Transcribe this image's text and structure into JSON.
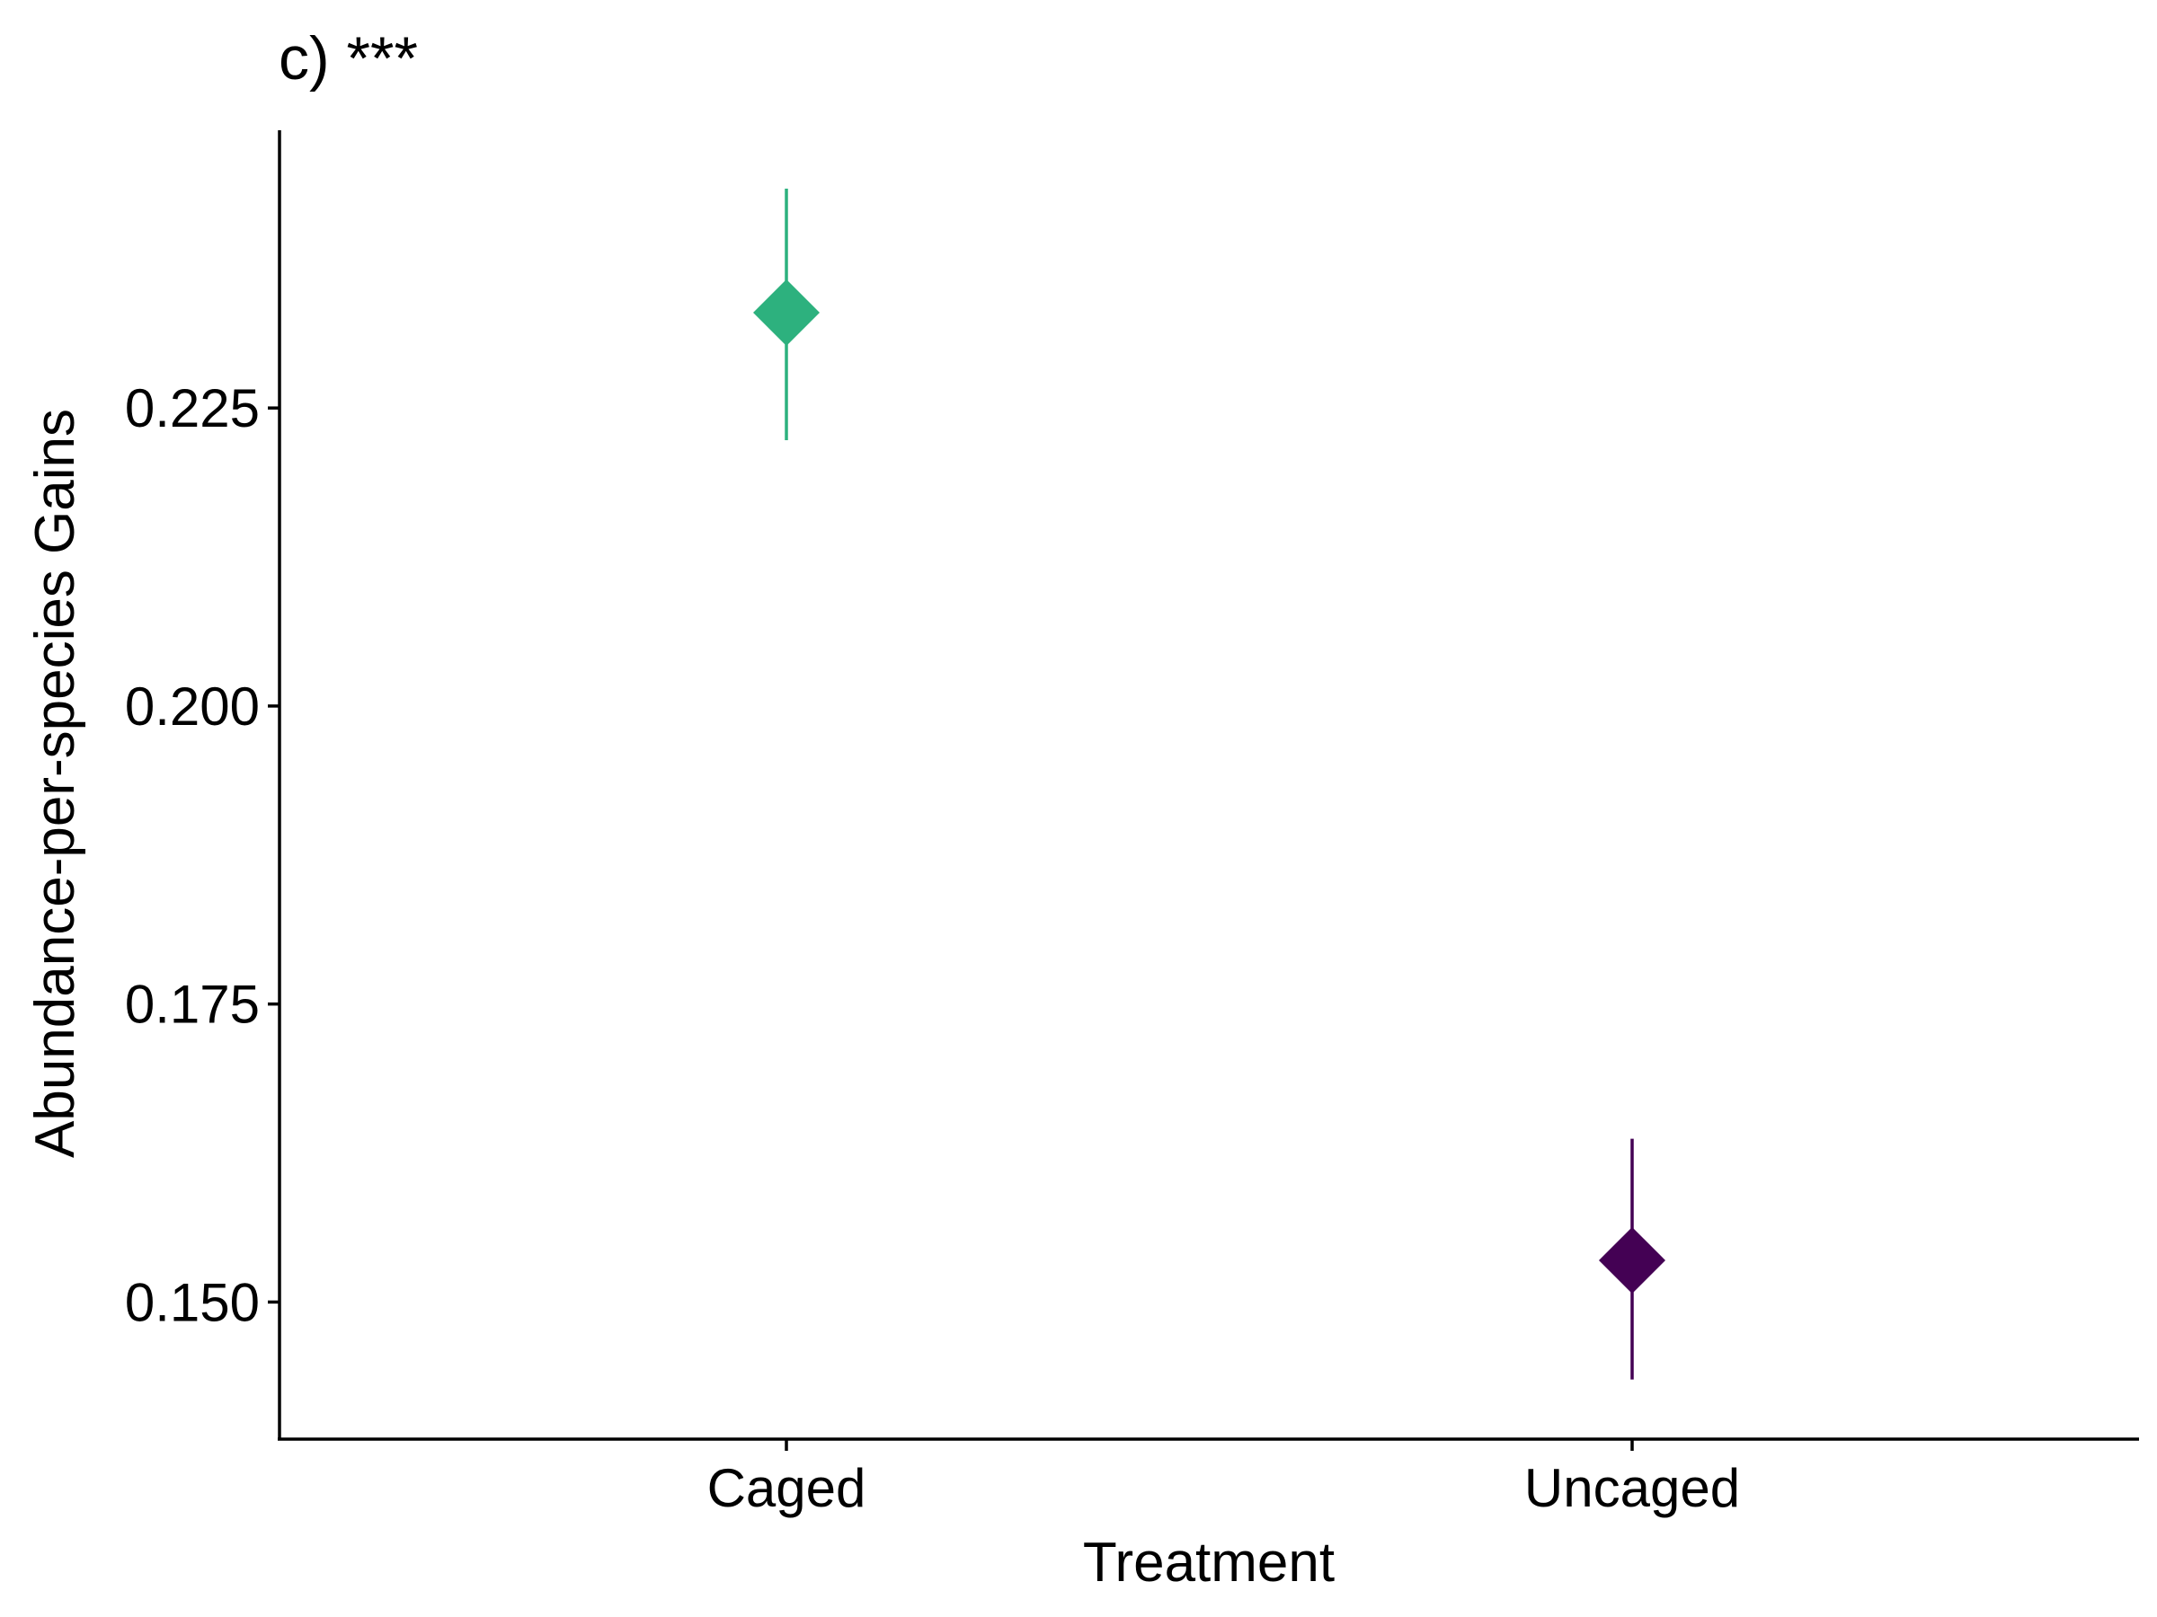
{
  "chart_data": {
    "type": "scatter",
    "title": "c) ***",
    "xlabel": "Treatment",
    "ylabel": "Abundance-per-species Gains",
    "categories": [
      "Caged",
      "Uncaged"
    ],
    "points": [
      {
        "category": "Caged",
        "y": 0.233,
        "ymin": 0.2223,
        "ymax": 0.2434,
        "color": "#2db17e"
      },
      {
        "category": "Uncaged",
        "y": 0.1535,
        "ymin": 0.1435,
        "ymax": 0.1637,
        "color": "#440154"
      }
    ],
    "y_ticks": [
      0.15,
      0.175,
      0.2,
      0.225
    ],
    "y_tick_labels": [
      "0.150",
      "0.175",
      "0.200",
      "0.225"
    ],
    "ylim": [
      0.1385,
      0.2483
    ],
    "marker": "diamond",
    "grid": false,
    "legend": false
  }
}
